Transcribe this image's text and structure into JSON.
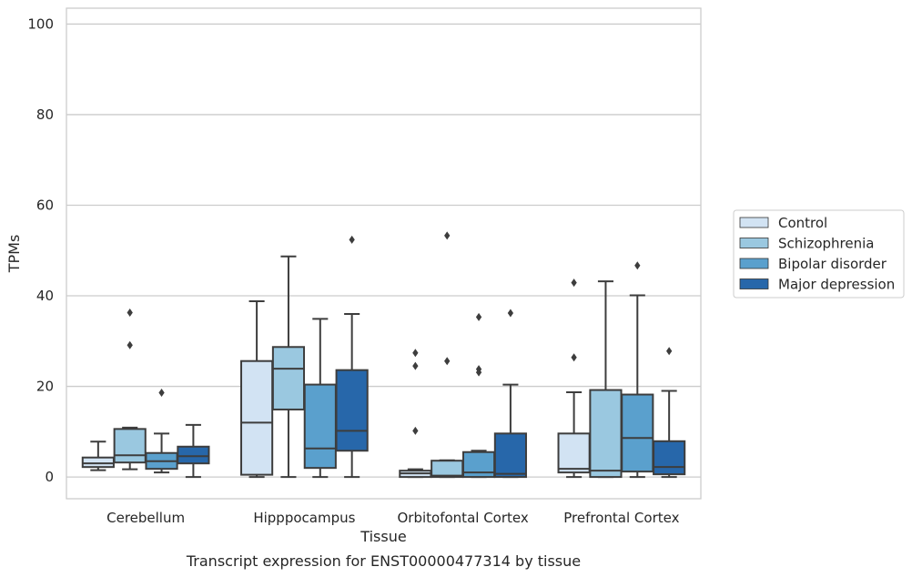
{
  "chart_data": {
    "type": "box",
    "title": "",
    "caption": "Transcript expression for ENST00000477314 by tissue",
    "xlabel": "Tissue",
    "ylabel": "TPMs",
    "ylim": [
      -4.8,
      103.5
    ],
    "yticks": [
      0,
      20,
      40,
      60,
      80,
      100
    ],
    "grid": true,
    "legend_position": "right",
    "categories": [
      "Cerebellum",
      "Hipppocampus",
      "Orbitofontal Cortex",
      "Prefrontal Cortex"
    ],
    "series": [
      {
        "name": "Control",
        "color": "#d2e3f3",
        "boxes": [
          {
            "whislo": 1.5,
            "q1": 2.2,
            "med": 3.0,
            "q3": 4.3,
            "whishi": 7.8,
            "fliers": []
          },
          {
            "whislo": 0.0,
            "q1": 0.5,
            "med": 12.0,
            "q3": 25.6,
            "whishi": 38.8,
            "fliers": []
          },
          {
            "whislo": 0.0,
            "q1": 0.0,
            "med": 0.8,
            "q3": 1.4,
            "whishi": 1.7,
            "fliers": [
              27.4,
              24.5,
              10.2
            ]
          },
          {
            "whislo": 0.0,
            "q1": 1.0,
            "med": 1.8,
            "q3": 9.6,
            "whishi": 18.7,
            "fliers": [
              42.9,
              26.4
            ]
          }
        ]
      },
      {
        "name": "Schizophrenia",
        "color": "#9ac8e0",
        "boxes": [
          {
            "whislo": 1.7,
            "q1": 3.2,
            "med": 4.8,
            "q3": 10.6,
            "whishi": 10.9,
            "fliers": [
              36.3,
              29.1
            ]
          },
          {
            "whislo": 0.0,
            "q1": 14.9,
            "med": 23.9,
            "q3": 28.7,
            "whishi": 48.7,
            "fliers": []
          },
          {
            "whislo": 0.0,
            "q1": 0.0,
            "med": 0.3,
            "q3": 3.6,
            "whishi": 3.7,
            "fliers": [
              53.3,
              25.6
            ]
          },
          {
            "whislo": 0.0,
            "q1": 0.0,
            "med": 1.4,
            "q3": 19.2,
            "whishi": 43.2,
            "fliers": []
          }
        ]
      },
      {
        "name": "Bipolar disorder",
        "color": "#5aa0cd",
        "boxes": [
          {
            "whislo": 1.0,
            "q1": 1.8,
            "med": 3.5,
            "q3": 5.3,
            "whishi": 9.6,
            "fliers": [
              18.6
            ]
          },
          {
            "whislo": 0.0,
            "q1": 2.0,
            "med": 6.3,
            "q3": 20.4,
            "whishi": 34.9,
            "fliers": []
          },
          {
            "whislo": 0.0,
            "q1": 0.0,
            "med": 1.0,
            "q3": 5.5,
            "whishi": 5.8,
            "fliers": [
              35.3,
              23.8,
              23.1
            ]
          },
          {
            "whislo": 0.0,
            "q1": 1.2,
            "med": 8.6,
            "q3": 18.2,
            "whishi": 40.1,
            "fliers": [
              46.7
            ]
          }
        ]
      },
      {
        "name": "Major depression",
        "color": "#2767aa",
        "boxes": [
          {
            "whislo": 0.0,
            "q1": 3.0,
            "med": 4.6,
            "q3": 6.7,
            "whishi": 11.5,
            "fliers": []
          },
          {
            "whislo": 0.0,
            "q1": 5.8,
            "med": 10.2,
            "q3": 23.6,
            "whishi": 36.0,
            "fliers": [
              52.4
            ]
          },
          {
            "whislo": 0.0,
            "q1": 0.0,
            "med": 0.7,
            "q3": 9.6,
            "whishi": 20.4,
            "fliers": [
              36.2
            ]
          },
          {
            "whislo": 0.0,
            "q1": 0.6,
            "med": 2.2,
            "q3": 7.9,
            "whishi": 19.0,
            "fliers": [
              27.8
            ]
          }
        ]
      }
    ]
  }
}
